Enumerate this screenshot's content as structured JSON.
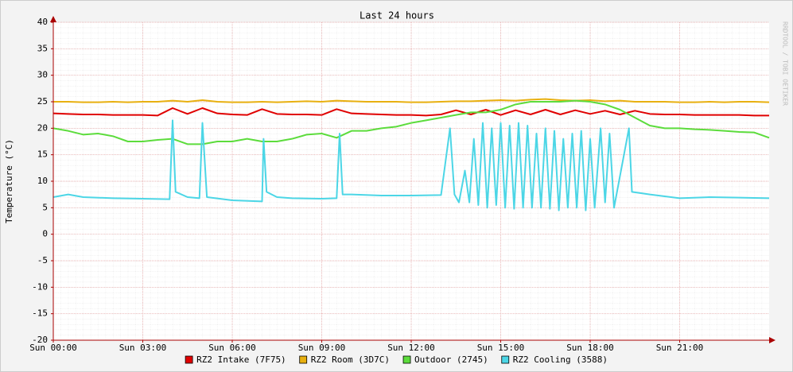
{
  "chart_data": {
    "type": "line",
    "title": "Last 24 hours",
    "ylabel": "Temperature (°C)",
    "watermark": "RRDTOOL / TOBI OETIKER",
    "xlim": [
      0,
      24
    ],
    "xticks": [
      {
        "value": 0,
        "label": "Sun 00:00"
      },
      {
        "value": 3,
        "label": "Sun 03:00"
      },
      {
        "value": 6,
        "label": "Sun 06:00"
      },
      {
        "value": 9,
        "label": "Sun 09:00"
      },
      {
        "value": 12,
        "label": "Sun 12:00"
      },
      {
        "value": 15,
        "label": "Sun 15:00"
      },
      {
        "value": 18,
        "label": "Sun 18:00"
      },
      {
        "value": 21,
        "label": "Sun 21:00"
      }
    ],
    "ylim": [
      -20,
      40
    ],
    "yticks": [
      -20,
      -15,
      -10,
      -5,
      0,
      5,
      10,
      15,
      20,
      25,
      30,
      35,
      40
    ],
    "grid": true,
    "x": [
      0,
      0.5,
      1,
      1.5,
      2,
      2.5,
      3,
      3.5,
      4,
      4.5,
      5,
      5.5,
      6,
      6.5,
      7,
      7.5,
      8,
      8.5,
      9,
      9.5,
      10,
      10.5,
      11,
      11.5,
      12,
      12.5,
      13,
      13.5,
      14,
      14.5,
      15,
      15.5,
      16,
      16.5,
      17,
      17.5,
      18,
      18.5,
      19,
      19.5,
      20,
      20.5,
      21,
      21.5,
      22,
      22.5,
      23,
      23.5,
      24
    ],
    "series": [
      {
        "name": "RZ2 Intake (7F75)",
        "color": "#e00000",
        "values": [
          22.8,
          22.7,
          22.6,
          22.6,
          22.5,
          22.5,
          22.5,
          22.4,
          23.8,
          22.7,
          23.8,
          22.8,
          22.6,
          22.5,
          23.6,
          22.7,
          22.6,
          22.6,
          22.5,
          23.6,
          22.8,
          22.7,
          22.6,
          22.5,
          22.5,
          22.4,
          22.6,
          23.4,
          22.6,
          23.5,
          22.5,
          23.4,
          22.6,
          23.5,
          22.6,
          23.4,
          22.7,
          23.3,
          22.6,
          23.3,
          22.7,
          22.6,
          22.6,
          22.5,
          22.5,
          22.5,
          22.5,
          22.4,
          22.4
        ]
      },
      {
        "name": "RZ2 Room (3D7C)",
        "color": "#e8b010",
        "values": [
          25,
          25,
          24.9,
          24.9,
          25,
          24.9,
          25,
          25,
          25.2,
          25,
          25.3,
          25,
          24.9,
          24.9,
          25,
          24.9,
          25,
          25.1,
          25,
          25.2,
          25.1,
          25,
          25,
          25,
          24.9,
          24.9,
          25,
          25.1,
          25.1,
          25.2,
          25.3,
          25.2,
          25.4,
          25.5,
          25.3,
          25.2,
          25.3,
          25.1,
          25.2,
          25,
          25,
          25,
          24.9,
          24.9,
          25,
          24.9,
          25,
          25,
          24.9
        ]
      },
      {
        "name": "Outdoor (2745)",
        "color": "#5cdc3c",
        "values": [
          20,
          19.5,
          18.8,
          19,
          18.5,
          17.5,
          17.5,
          17.8,
          18,
          17,
          17,
          17.5,
          17.5,
          18,
          17.5,
          17.5,
          18,
          18.8,
          19,
          18.2,
          19.5,
          19.5,
          20,
          20.3,
          21,
          21.5,
          22,
          22.5,
          23,
          23,
          23.5,
          24.5,
          25,
          25,
          25,
          25.2,
          25,
          24.5,
          23.5,
          22,
          20.5,
          20,
          20,
          19.8,
          19.7,
          19.5,
          19.3,
          19.2,
          18.2
        ]
      },
      {
        "name": "RZ2 Cooling (3588)",
        "color": "#4cd6e6",
        "x": [
          0,
          0.5,
          1,
          2,
          3,
          3.9,
          4.0,
          4.1,
          4.5,
          4.9,
          5.0,
          5.15,
          6,
          7,
          7.05,
          7.15,
          7.5,
          8,
          9,
          9.5,
          9.6,
          9.7,
          10,
          11,
          12,
          13,
          13.3,
          13.45,
          13.6,
          13.8,
          13.95,
          14.1,
          14.25,
          14.4,
          14.55,
          14.7,
          14.85,
          15,
          15.15,
          15.3,
          15.45,
          15.6,
          15.75,
          15.9,
          16.05,
          16.2,
          16.35,
          16.5,
          16.65,
          16.8,
          16.95,
          17.1,
          17.25,
          17.4,
          17.55,
          17.7,
          17.85,
          18,
          18.15,
          18.35,
          18.5,
          18.65,
          18.8,
          19.3,
          19.4,
          20,
          21,
          22,
          23,
          24
        ],
        "values": [
          7,
          7.5,
          7,
          6.8,
          6.7,
          6.6,
          21.5,
          8,
          7,
          6.8,
          21,
          7,
          6.4,
          6.2,
          18,
          8,
          7,
          6.8,
          6.7,
          6.8,
          19,
          7.5,
          7.5,
          7.3,
          7.3,
          7.4,
          20,
          7.5,
          6,
          12,
          6,
          18,
          5.5,
          21,
          5,
          20,
          5.5,
          21,
          5,
          20.5,
          4.8,
          21,
          5,
          20.5,
          5,
          19,
          5,
          20,
          4.8,
          19.5,
          4.5,
          18,
          5,
          19,
          5,
          19.5,
          4.5,
          18,
          5,
          20,
          6,
          19,
          5,
          20,
          8,
          7.5,
          6.8,
          7,
          6.9,
          6.8
        ]
      }
    ]
  }
}
